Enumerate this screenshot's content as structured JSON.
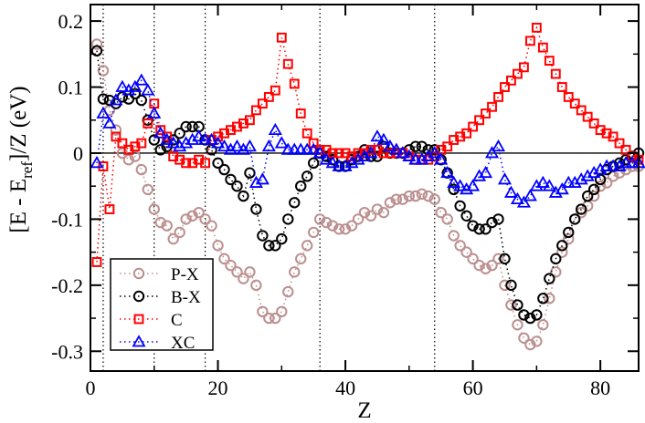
{
  "chart_data": {
    "type": "scatter",
    "title": "",
    "xlabel": "Z",
    "ylabel": {
      "main": "[E - E",
      "sub": "ref",
      "rest": "]/Z (eV)"
    },
    "xlim": [
      0,
      86
    ],
    "ylim": [
      -0.33,
      0.225
    ],
    "xticks": [
      0,
      20,
      40,
      60,
      80
    ],
    "xtick_labels": [
      "0",
      "20",
      "40",
      "60",
      "80"
    ],
    "yticks": [
      -0.3,
      -0.2,
      -0.1,
      0,
      0.1,
      0.2
    ],
    "ytick_labels": [
      "-0.3",
      "-0.2",
      "-0.1",
      "0",
      "0.1",
      "0.2"
    ],
    "grid": false,
    "zero_line": 0,
    "vertical_reference_lines": [
      2,
      10,
      18,
      36,
      54
    ],
    "legend_position": "bottom-left",
    "series": [
      {
        "name": "P-X",
        "marker": "circle",
        "color": "#bc8f8f",
        "x": [
          1,
          2,
          3,
          4,
          5,
          6,
          7,
          8,
          9,
          10,
          11,
          12,
          13,
          14,
          15,
          16,
          17,
          18,
          19,
          20,
          21,
          22,
          23,
          24,
          25,
          26,
          27,
          28,
          29,
          30,
          31,
          32,
          33,
          34,
          35,
          36,
          37,
          38,
          39,
          40,
          41,
          42,
          43,
          44,
          45,
          46,
          47,
          48,
          49,
          50,
          51,
          52,
          53,
          54,
          55,
          56,
          57,
          58,
          59,
          60,
          61,
          62,
          63,
          64,
          65,
          66,
          67,
          68,
          69,
          70,
          71,
          72,
          73,
          74,
          75,
          76,
          77,
          78,
          79,
          80,
          81,
          82,
          83,
          84,
          85,
          86
        ],
        "values": [
          0.165,
          0.125,
          0.065,
          0.035,
          0,
          -0.01,
          -0.005,
          -0.025,
          -0.055,
          -0.085,
          -0.105,
          -0.11,
          -0.13,
          -0.12,
          -0.1,
          -0.095,
          -0.09,
          -0.1,
          -0.11,
          -0.14,
          -0.16,
          -0.17,
          -0.18,
          -0.19,
          -0.18,
          -0.2,
          -0.24,
          -0.25,
          -0.25,
          -0.24,
          -0.21,
          -0.18,
          -0.16,
          -0.14,
          -0.12,
          -0.1,
          -0.105,
          -0.11,
          -0.115,
          -0.115,
          -0.11,
          -0.1,
          -0.09,
          -0.095,
          -0.085,
          -0.09,
          -0.075,
          -0.07,
          -0.07,
          -0.065,
          -0.065,
          -0.062,
          -0.065,
          -0.07,
          -0.09,
          -0.1,
          -0.125,
          -0.14,
          -0.15,
          -0.16,
          -0.17,
          -0.175,
          -0.17,
          -0.16,
          -0.2,
          -0.23,
          -0.26,
          -0.28,
          -0.29,
          -0.285,
          -0.26,
          -0.22,
          -0.18,
          -0.15,
          -0.13,
          -0.1,
          -0.09,
          -0.08,
          -0.065,
          -0.05,
          -0.045,
          -0.035,
          -0.03,
          -0.025,
          -0.02,
          -0.02
        ]
      },
      {
        "name": "B-X",
        "marker": "circle",
        "color": "#000000",
        "x": [
          1,
          2,
          3,
          4,
          5,
          6,
          7,
          8,
          9,
          10,
          11,
          12,
          13,
          14,
          15,
          16,
          17,
          18,
          19,
          20,
          21,
          22,
          23,
          24,
          25,
          26,
          27,
          28,
          29,
          30,
          31,
          32,
          33,
          34,
          35,
          36,
          37,
          38,
          39,
          40,
          41,
          42,
          43,
          44,
          45,
          46,
          47,
          48,
          49,
          50,
          51,
          52,
          53,
          54,
          55,
          56,
          57,
          58,
          59,
          60,
          61,
          62,
          63,
          64,
          65,
          66,
          67,
          68,
          69,
          70,
          71,
          72,
          73,
          74,
          75,
          76,
          77,
          78,
          79,
          80,
          81,
          82,
          83,
          84,
          85,
          86
        ],
        "values": [
          0.155,
          0.082,
          0.08,
          0.075,
          0.085,
          0.082,
          0.09,
          0.08,
          0.05,
          0.02,
          0.005,
          0.01,
          0.02,
          0.03,
          0.04,
          0.04,
          0.04,
          0.02,
          0.005,
          -0.015,
          -0.025,
          -0.04,
          -0.05,
          -0.065,
          -0.03,
          -0.085,
          -0.125,
          -0.14,
          -0.14,
          -0.13,
          -0.1,
          -0.075,
          -0.05,
          -0.035,
          -0.015,
          0,
          -0.005,
          -0.01,
          -0.02,
          -0.02,
          -0.01,
          -0.005,
          0.005,
          -0.005,
          -0.005,
          0.01,
          0,
          0,
          0,
          0.005,
          0.01,
          0.01,
          0.005,
          0.005,
          -0.01,
          -0.03,
          -0.055,
          -0.08,
          -0.095,
          -0.11,
          -0.115,
          -0.115,
          -0.105,
          -0.1,
          -0.16,
          -0.2,
          -0.23,
          -0.245,
          -0.25,
          -0.245,
          -0.22,
          -0.19,
          -0.16,
          -0.14,
          -0.12,
          -0.1,
          -0.085,
          -0.065,
          -0.055,
          -0.04,
          -0.025,
          -0.02,
          -0.015,
          -0.01,
          -0.005,
          0
        ]
      },
      {
        "name": "C",
        "marker": "square",
        "color": "#ff0000",
        "x": [
          1,
          2,
          3,
          4,
          5,
          6,
          7,
          8,
          9,
          10,
          11,
          12,
          13,
          14,
          15,
          16,
          17,
          18,
          19,
          20,
          21,
          22,
          23,
          24,
          25,
          26,
          27,
          28,
          29,
          30,
          31,
          32,
          33,
          34,
          35,
          36,
          37,
          38,
          39,
          40,
          41,
          42,
          43,
          44,
          45,
          46,
          47,
          48,
          49,
          50,
          51,
          52,
          53,
          54,
          55,
          56,
          57,
          58,
          59,
          60,
          61,
          62,
          63,
          64,
          65,
          66,
          67,
          68,
          69,
          70,
          71,
          72,
          73,
          74,
          75,
          76,
          77,
          78,
          79,
          80,
          81,
          82,
          83,
          84,
          85,
          86
        ],
        "values": [
          -0.165,
          -0.02,
          -0.085,
          0.025,
          0.015,
          0.005,
          0.01,
          0.015,
          0.045,
          0.075,
          0.035,
          0.025,
          -0.005,
          -0.01,
          -0.015,
          -0.015,
          -0.01,
          -0.015,
          0.02,
          0.025,
          0.03,
          0.035,
          0.04,
          0.045,
          0.05,
          0.065,
          0.075,
          0.085,
          0.095,
          0.175,
          0.135,
          0.105,
          0.06,
          0.03,
          0.015,
          0.005,
          0.005,
          0,
          0,
          0,
          -0.005,
          0,
          0,
          0.005,
          0.005,
          0,
          0,
          0,
          0,
          -0.005,
          -0.01,
          -0.01,
          -0.01,
          -0.005,
          0.005,
          0.01,
          0.02,
          0.025,
          0.03,
          0.04,
          0.05,
          0.06,
          0.07,
          0.085,
          0.1,
          0.11,
          0.12,
          0.13,
          0.17,
          0.19,
          0.16,
          0.14,
          0.12,
          0.1,
          0.085,
          0.075,
          0.065,
          0.055,
          0.045,
          0.035,
          0.03,
          0.025,
          0.015,
          0.005,
          -0.005,
          -0.01
        ]
      },
      {
        "name": "XC",
        "marker": "triangle",
        "color": "#0000ff",
        "x": [
          1,
          2,
          3,
          4,
          5,
          6,
          7,
          8,
          9,
          10,
          11,
          12,
          13,
          14,
          15,
          16,
          17,
          18,
          19,
          20,
          21,
          22,
          23,
          24,
          25,
          26,
          27,
          28,
          29,
          30,
          31,
          32,
          33,
          34,
          35,
          36,
          37,
          38,
          39,
          40,
          41,
          42,
          43,
          44,
          45,
          46,
          47,
          48,
          49,
          50,
          51,
          52,
          53,
          54,
          55,
          56,
          57,
          58,
          59,
          60,
          61,
          62,
          63,
          64,
          65,
          66,
          67,
          68,
          69,
          70,
          71,
          72,
          73,
          74,
          75,
          76,
          77,
          78,
          79,
          80,
          81,
          82,
          83,
          84,
          85,
          86
        ],
        "values": [
          -0.015,
          0.06,
          0.045,
          0.08,
          0.1,
          0.095,
          0.1,
          0.11,
          0.095,
          0.06,
          0.03,
          0.02,
          0.015,
          0.01,
          0.015,
          0.02,
          0.025,
          0.02,
          0.02,
          0.015,
          0.01,
          0.005,
          0.01,
          0.005,
          0.01,
          -0.045,
          -0.04,
          0.01,
          0.035,
          0.015,
          0.005,
          0.005,
          0.005,
          0.005,
          0.005,
          0,
          -0.01,
          -0.015,
          -0.02,
          -0.02,
          -0.015,
          -0.01,
          -0.005,
          0,
          0.025,
          0.02,
          0.01,
          0.005,
          0,
          -0.005,
          -0.01,
          -0.01,
          -0.005,
          0,
          -0.01,
          -0.03,
          -0.045,
          -0.05,
          -0.055,
          -0.05,
          -0.035,
          -0.03,
          0,
          0.01,
          -0.04,
          -0.06,
          -0.07,
          -0.075,
          -0.065,
          -0.05,
          -0.045,
          -0.05,
          -0.06,
          -0.055,
          -0.045,
          -0.045,
          -0.04,
          -0.035,
          -0.03,
          -0.025,
          -0.02,
          -0.02,
          -0.02,
          -0.015,
          -0.015,
          -0.015
        ]
      }
    ]
  }
}
